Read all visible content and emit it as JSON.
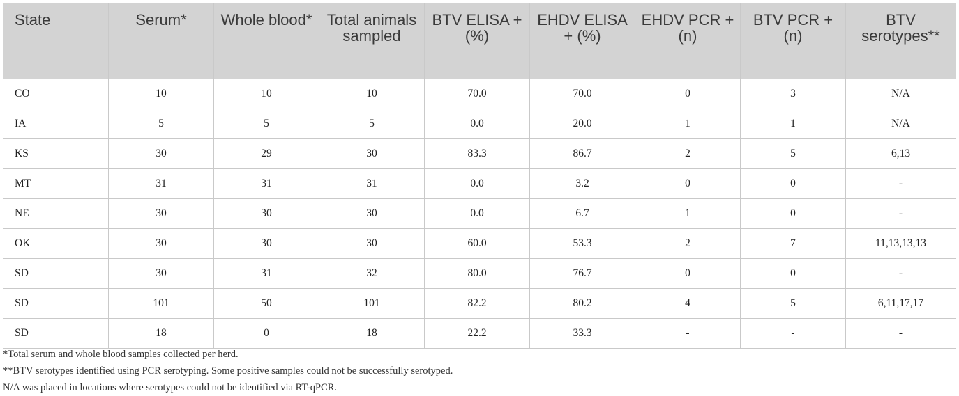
{
  "table": {
    "headers": [
      "State",
      "Serum*",
      "Whole blood*",
      "Total animals sampled",
      "BTV ELISA + (%)",
      "EHDV ELISA + (%)",
      "EHDV PCR + (n)",
      "BTV PCR + (n)",
      "BTV serotypes**"
    ],
    "rows": [
      [
        "CO",
        "10",
        "10",
        "10",
        "70.0",
        "70.0",
        "0",
        "3",
        "N/A"
      ],
      [
        "IA",
        "5",
        "5",
        "5",
        "0.0",
        "20.0",
        "1",
        "1",
        "N/A"
      ],
      [
        "KS",
        "30",
        "29",
        "30",
        "83.3",
        "86.7",
        "2",
        "5",
        "6,13"
      ],
      [
        "MT",
        "31",
        "31",
        "31",
        "0.0",
        "3.2",
        "0",
        "0",
        "-"
      ],
      [
        "NE",
        "30",
        "30",
        "30",
        "0.0",
        "6.7",
        "1",
        "0",
        "-"
      ],
      [
        "OK",
        "30",
        "30",
        "30",
        "60.0",
        "53.3",
        "2",
        "7",
        "11,13,13,13"
      ],
      [
        "SD",
        "30",
        "31",
        "32",
        "80.0",
        "76.7",
        "0",
        "0",
        "-"
      ],
      [
        "SD",
        "101",
        "50",
        "101",
        "82.2",
        "80.2",
        "4",
        "5",
        "6,11,17,17"
      ],
      [
        "SD",
        "18",
        "0",
        "18",
        "22.2",
        "33.3",
        "-",
        "-",
        "-"
      ]
    ]
  },
  "footnotes": [
    "*Total serum and whole blood samples collected per herd.",
    "**BTV serotypes identified using PCR serotyping. Some positive samples could not be successfully serotyped.",
    "N/A was placed in locations where serotypes could not be identified via RT-qPCR."
  ]
}
